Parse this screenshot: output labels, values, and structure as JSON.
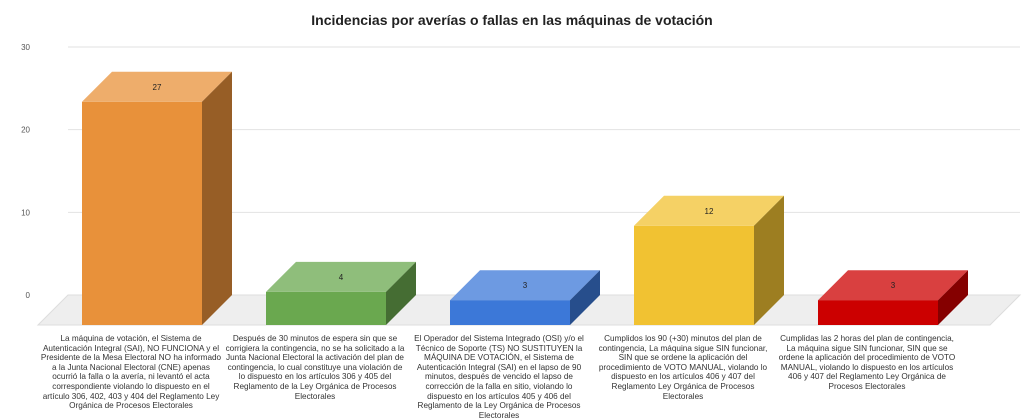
{
  "chart_data": {
    "type": "bar",
    "title": "Incidencias por averías o fallas en las máquinas de votación",
    "xlabel": "",
    "ylabel": "",
    "ylim": [
      0,
      30
    ],
    "yticks": [
      0,
      10,
      20,
      30
    ],
    "grid": true,
    "legend": "none",
    "categories": [
      "La máquina de votación, el Sistema de Autenticación Integral (SAI), NO FUNCIONA y el Presidente de la Mesa Electoral NO ha informado a la Junta Nacional Electoral (CNE) apenas ocurrió la falla o la avería, ni levantó el acta correspondiente violando lo dispuesto en el artículo 306, 402, 403 y 404 del Reglamento Ley Orgánica de Procesos Electorales",
      "Después de 30 minutos de espera sin que se corrigiera la contingencia, no se ha solicitado a la Junta Nacional Electoral la activación del plan de contingencia, lo cual constituye una violación de lo dispuesto en los artículos 306 y 405 del Reglamento de la Ley Orgánica de Procesos Electorales",
      "El Operador del Sistema Integrado (OSI) y/o el Técnico de Soporte (TS) NO SUSTITUYEN la MÁQUINA DE VOTACIÓN, el Sistema de Autenticación Integral (SAI) en el lapso de 90 minutos, después de vencido el lapso de corrección de la falla en sitio, violando lo dispuesto en los artículos 405 y 406 del Reglamento de la Ley Orgánica de Procesos Electorales",
      "Cumplidos los 90 (+30) minutos del plan de contingencia, La máquina sigue SIN funcionar, SIN que se ordene la aplicación del procedimiento de VOTO MANUAL, violando lo dispuesto en los artículos 406 y 407 del Reglamento Ley Orgánica de Procesos Electorales",
      "Cumplidas las 2 horas del plan de contingencia, La máquina sigue SIN funcionar, SIN que se ordene la aplicación del procedimiento de VOTO MANUAL, violando lo dispuesto en los artículos 406 y 407 del Reglamento Ley Orgánica de Procesos Electorales"
    ],
    "values": [
      27,
      4,
      3,
      12,
      3
    ],
    "data_labels": [
      "27",
      "4",
      "3",
      "12",
      "3"
    ],
    "colors": [
      "#E8913A",
      "#6AA84F",
      "#3C78D8",
      "#F1C232",
      "#CC0000"
    ]
  }
}
